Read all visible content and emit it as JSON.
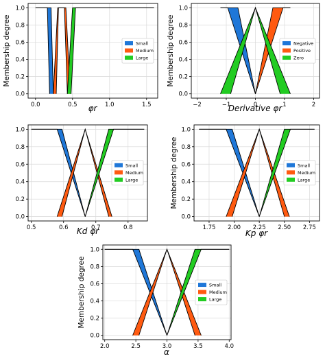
{
  "chart_data": [
    {
      "type": "area",
      "ylabel": "Membership degree",
      "xlabel": "φr",
      "xlim": [
        -0.1,
        1.65
      ],
      "ylim": [
        -0.05,
        1.05
      ],
      "xticks": [
        "0.0",
        "0.5",
        "1.0",
        "1.5"
      ],
      "yticks": [
        "0.0",
        "0.2",
        "0.4",
        "0.6",
        "0.8",
        "1.0"
      ],
      "grid": true,
      "legend_position": "center-right",
      "series": [
        {
          "name": "Small",
          "color": "#1f77d8",
          "upper": [
            [
              0,
              1
            ],
            [
              0.21,
              1
            ],
            [
              0.24,
              0
            ]
          ],
          "lower": [
            [
              0,
              1
            ],
            [
              0.16,
              1
            ],
            [
              0.19,
              0
            ]
          ]
        },
        {
          "name": "Medium",
          "color": "#ff5a10",
          "upper": [
            [
              0.24,
              0
            ],
            [
              0.3,
              1
            ],
            [
              0.41,
              1
            ],
            [
              0.47,
              0
            ]
          ],
          "lower": [
            [
              0.28,
              0
            ],
            [
              0.31,
              1
            ],
            [
              0.39,
              1
            ],
            [
              0.43,
              0
            ]
          ]
        },
        {
          "name": "Large",
          "color": "#22cc22",
          "upper": [
            [
              0.43,
              0
            ],
            [
              0.5,
              1
            ],
            [
              1.6,
              1
            ]
          ],
          "lower": [
            [
              0.48,
              0
            ],
            [
              0.54,
              1
            ],
            [
              1.6,
              1
            ]
          ]
        }
      ]
    },
    {
      "type": "area",
      "ylabel": "Membership degree",
      "xlabel": "Derivative φr",
      "xlim": [
        -2.2,
        2.2
      ],
      "ylim": [
        -0.05,
        1.05
      ],
      "xticks": [
        "−2",
        "−1",
        "0",
        "1",
        "2"
      ],
      "yticks": [
        "0.0",
        "0.2",
        "0.4",
        "0.6",
        "0.8",
        "1.0"
      ],
      "grid": true,
      "legend_position": "center-right",
      "series": [
        {
          "name": "Negative",
          "color": "#1f77d8",
          "upper": [
            [
              -1.2,
              1
            ],
            [
              -0.6,
              1
            ],
            [
              0,
              0
            ]
          ],
          "lower": [
            [
              -1.2,
              1
            ],
            [
              -0.95,
              1
            ],
            [
              0,
              0
            ]
          ]
        },
        {
          "name": "Positive",
          "color": "#ff5a10",
          "upper": [
            [
              0,
              0
            ],
            [
              0.6,
              1
            ],
            [
              1.2,
              1
            ]
          ],
          "lower": [
            [
              0,
              0
            ],
            [
              0.95,
              1
            ],
            [
              1.2,
              1
            ]
          ]
        },
        {
          "name": "Zero",
          "color": "#22cc22",
          "upper": [
            [
              -0.85,
              0
            ],
            [
              0,
              1
            ],
            [
              0.85,
              0
            ]
          ],
          "lower": [
            [
              -1.2,
              0
            ],
            [
              0,
              1
            ],
            [
              1.2,
              0
            ]
          ]
        }
      ]
    },
    {
      "type": "area",
      "ylabel": "",
      "xlabel": "Kd φr",
      "xlim": [
        0.49,
        0.86
      ],
      "ylim": [
        -0.05,
        1.05
      ],
      "xticks": [
        "0.5",
        "0.6",
        "0.7",
        "0.8"
      ],
      "yticks": [
        "0.0",
        "0.2",
        "0.4",
        "0.6",
        "0.8",
        "1.0"
      ],
      "grid": true,
      "legend_position": "center-right",
      "series": [
        {
          "name": "Small",
          "color": "#1f77d8",
          "upper": [
            [
              0.5,
              1
            ],
            [
              0.595,
              1
            ],
            [
              0.667,
              0
            ]
          ],
          "lower": [
            [
              0.5,
              1
            ],
            [
              0.58,
              1
            ],
            [
              0.667,
              0
            ]
          ]
        },
        {
          "name": "Medium",
          "color": "#ff5a10",
          "upper": [
            [
              0.58,
              0
            ],
            [
              0.667,
              1
            ],
            [
              0.75,
              0
            ]
          ],
          "lower": [
            [
              0.595,
              0
            ],
            [
              0.667,
              1
            ],
            [
              0.74,
              0
            ]
          ]
        },
        {
          "name": "Large",
          "color": "#22cc22",
          "upper": [
            [
              0.667,
              0
            ],
            [
              0.74,
              1
            ],
            [
              0.85,
              1
            ]
          ],
          "lower": [
            [
              0.667,
              0
            ],
            [
              0.755,
              1
            ],
            [
              0.85,
              1
            ]
          ]
        }
      ]
    },
    {
      "type": "area",
      "ylabel": "Membership degree",
      "xlabel": "Kp φr",
      "xlim": [
        1.6,
        2.85
      ],
      "ylim": [
        -0.05,
        1.05
      ],
      "xticks": [
        "1.75",
        "2.00",
        "2.25",
        "2.50",
        "2.75"
      ],
      "yticks": [
        "0.0",
        "0.2",
        "0.4",
        "0.6",
        "0.8",
        "1.0"
      ],
      "grid": true,
      "legend_position": "center-right",
      "series": [
        {
          "name": "Small",
          "color": "#1f77d8",
          "upper": [
            [
              1.65,
              1
            ],
            [
              1.98,
              1
            ],
            [
              2.25,
              0
            ]
          ],
          "lower": [
            [
              1.65,
              1
            ],
            [
              1.92,
              1
            ],
            [
              2.25,
              0
            ]
          ]
        },
        {
          "name": "Medium",
          "color": "#ff5a10",
          "upper": [
            [
              1.92,
              0
            ],
            [
              2.25,
              1
            ],
            [
              2.55,
              0
            ]
          ],
          "lower": [
            [
              1.98,
              0
            ],
            [
              2.25,
              1
            ],
            [
              2.5,
              0
            ]
          ]
        },
        {
          "name": "Large",
          "color": "#22cc22",
          "upper": [
            [
              2.25,
              0
            ],
            [
              2.5,
              1
            ],
            [
              2.8,
              1
            ]
          ],
          "lower": [
            [
              2.25,
              0
            ],
            [
              2.56,
              1
            ],
            [
              2.8,
              1
            ]
          ]
        }
      ]
    },
    {
      "type": "area",
      "ylabel": "Membership degree",
      "xlabel": "α",
      "xlim": [
        1.97,
        4.03
      ],
      "ylim": [
        -0.05,
        1.05
      ],
      "xticks": [
        "2.0",
        "2.5",
        "3.0",
        "3.5",
        "4.0"
      ],
      "yticks": [
        "0.0",
        "0.2",
        "0.4",
        "0.6",
        "0.8",
        "1.0"
      ],
      "grid": true,
      "legend_position": "center-right",
      "series": [
        {
          "name": "Small",
          "color": "#1f77d8",
          "upper": [
            [
              2.0,
              1
            ],
            [
              2.55,
              1
            ],
            [
              3.0,
              0
            ]
          ],
          "lower": [
            [
              2.0,
              1
            ],
            [
              2.45,
              1
            ],
            [
              3.0,
              0
            ]
          ]
        },
        {
          "name": "Medium",
          "color": "#ff5a10",
          "upper": [
            [
              2.45,
              0
            ],
            [
              3.0,
              1
            ],
            [
              3.55,
              0
            ]
          ],
          "lower": [
            [
              2.55,
              0
            ],
            [
              3.0,
              1
            ],
            [
              3.45,
              0
            ]
          ]
        },
        {
          "name": "Large",
          "color": "#22cc22",
          "upper": [
            [
              3.0,
              0
            ],
            [
              3.45,
              1
            ],
            [
              4.0,
              1
            ]
          ],
          "lower": [
            [
              3.0,
              0
            ],
            [
              3.55,
              1
            ],
            [
              4.0,
              1
            ]
          ]
        }
      ]
    }
  ]
}
